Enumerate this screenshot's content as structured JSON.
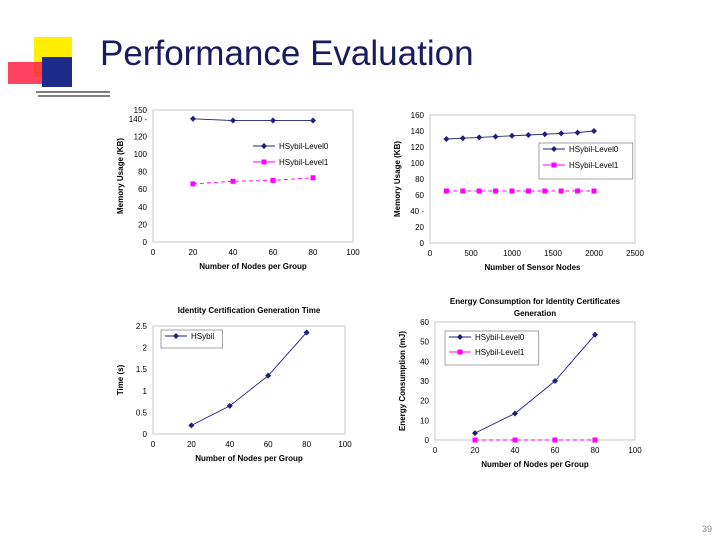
{
  "slide": {
    "title": "Performance Evaluation",
    "page_number": "39"
  },
  "colors": {
    "title": "#1a1a5e",
    "series_navy": "#1f1f7a",
    "series_magenta": "#ff00ff",
    "deco_yellow": "#ffee00",
    "deco_red": "#ff2244",
    "deco_blue": "#1e2a8a"
  },
  "chart_data": [
    {
      "type": "line",
      "title": "",
      "xlabel": "Number of Nodes per Group",
      "ylabel": "Memory Usage (KB)",
      "xlim": [
        0,
        100
      ],
      "ylim": [
        0,
        150
      ],
      "xticks": [
        "0",
        "20",
        "40",
        "60",
        "80",
        "100"
      ],
      "yticks": [
        "0",
        "20",
        "40",
        "60",
        "80",
        "100",
        "120",
        "140 -",
        "150"
      ],
      "ytick_values": [
        0,
        20,
        40,
        60,
        80,
        100,
        120,
        140,
        150
      ],
      "legend_position": "right",
      "series": [
        {
          "name": "HSybil-Level0",
          "marker": "diamond",
          "color": "#1f1f7a",
          "x": [
            20,
            40,
            60,
            80
          ],
          "y": [
            140,
            138,
            138,
            138
          ]
        },
        {
          "name": "HSybil-Level1",
          "marker": "square",
          "color": "#ff00ff",
          "x": [
            20,
            40,
            60,
            80
          ],
          "y": [
            66,
            69,
            70,
            73
          ]
        }
      ]
    },
    {
      "type": "line",
      "title": "",
      "xlabel": "Number of Sensor Nodes",
      "ylabel": "Memory Usage (KB)",
      "xlim": [
        0,
        2500
      ],
      "ylim": [
        0,
        160
      ],
      "xticks": [
        "0",
        "500",
        "1000",
        "1500",
        "2000",
        "2500"
      ],
      "yticks": [
        "0",
        "20",
        "40 -",
        "60",
        "80",
        "100",
        "120",
        "140",
        "160"
      ],
      "ytick_values": [
        0,
        20,
        40,
        60,
        80,
        100,
        120,
        140,
        160
      ],
      "legend_position": "right",
      "series": [
        {
          "name": "HSybil-Level0",
          "marker": "diamond",
          "color": "#1f1f7a",
          "x": [
            200,
            400,
            600,
            800,
            1000,
            1200,
            1400,
            1600,
            1800,
            2000
          ],
          "y": [
            130,
            131,
            132,
            133,
            134,
            135,
            136,
            137,
            138,
            140
          ]
        },
        {
          "name": "HSybil-Level1",
          "marker": "square",
          "color": "#ff00ff",
          "x": [
            200,
            400,
            600,
            800,
            1000,
            1200,
            1400,
            1600,
            1800,
            2000
          ],
          "y": [
            65,
            65,
            65,
            65,
            65,
            65,
            65,
            65,
            65,
            65
          ]
        }
      ]
    },
    {
      "type": "line",
      "title": "Identity Certification Generation Time",
      "xlabel": "Number of Nodes per Group",
      "ylabel": "Time (s)",
      "xlim": [
        0,
        100
      ],
      "ylim": [
        0,
        2.5
      ],
      "xticks": [
        "0",
        "20",
        "40",
        "60",
        "80",
        "100"
      ],
      "yticks": [
        "0",
        "0.5",
        "1",
        "1.5",
        "2",
        "2.5"
      ],
      "ytick_values": [
        0,
        0.5,
        1,
        1.5,
        2,
        2.5
      ],
      "legend_position": "top-left",
      "series": [
        {
          "name": "HSybil",
          "marker": "diamond",
          "color": "#1f1f7a",
          "x": [
            20,
            40,
            60,
            80
          ],
          "y": [
            0.2,
            0.65,
            1.35,
            2.35
          ]
        }
      ]
    },
    {
      "type": "line",
      "title": "Energy Consumption for Identity Certificates Generation",
      "xlabel": "Number of Nodes per Group",
      "ylabel": "Energy Consumption (mJ)",
      "xlim": [
        0,
        100
      ],
      "ylim": [
        0,
        60
      ],
      "xticks": [
        "0",
        "20",
        "40",
        "60",
        "80",
        "100"
      ],
      "yticks": [
        "0",
        "10",
        "20",
        "30",
        "40",
        "50",
        "60"
      ],
      "ytick_values": [
        0,
        10,
        20,
        30,
        40,
        50,
        60
      ],
      "legend_position": "top-left",
      "series": [
        {
          "name": "HSybil-Level0",
          "marker": "diamond",
          "color": "#1f1f7a",
          "x": [
            20,
            40,
            60,
            80
          ],
          "y": [
            3.5,
            13.5,
            30,
            53.5
          ]
        },
        {
          "name": "HSybil-Level1",
          "marker": "square",
          "color": "#ff00ff",
          "x": [
            20,
            40,
            60,
            80
          ],
          "y": [
            0,
            0,
            0,
            0
          ]
        }
      ]
    }
  ]
}
